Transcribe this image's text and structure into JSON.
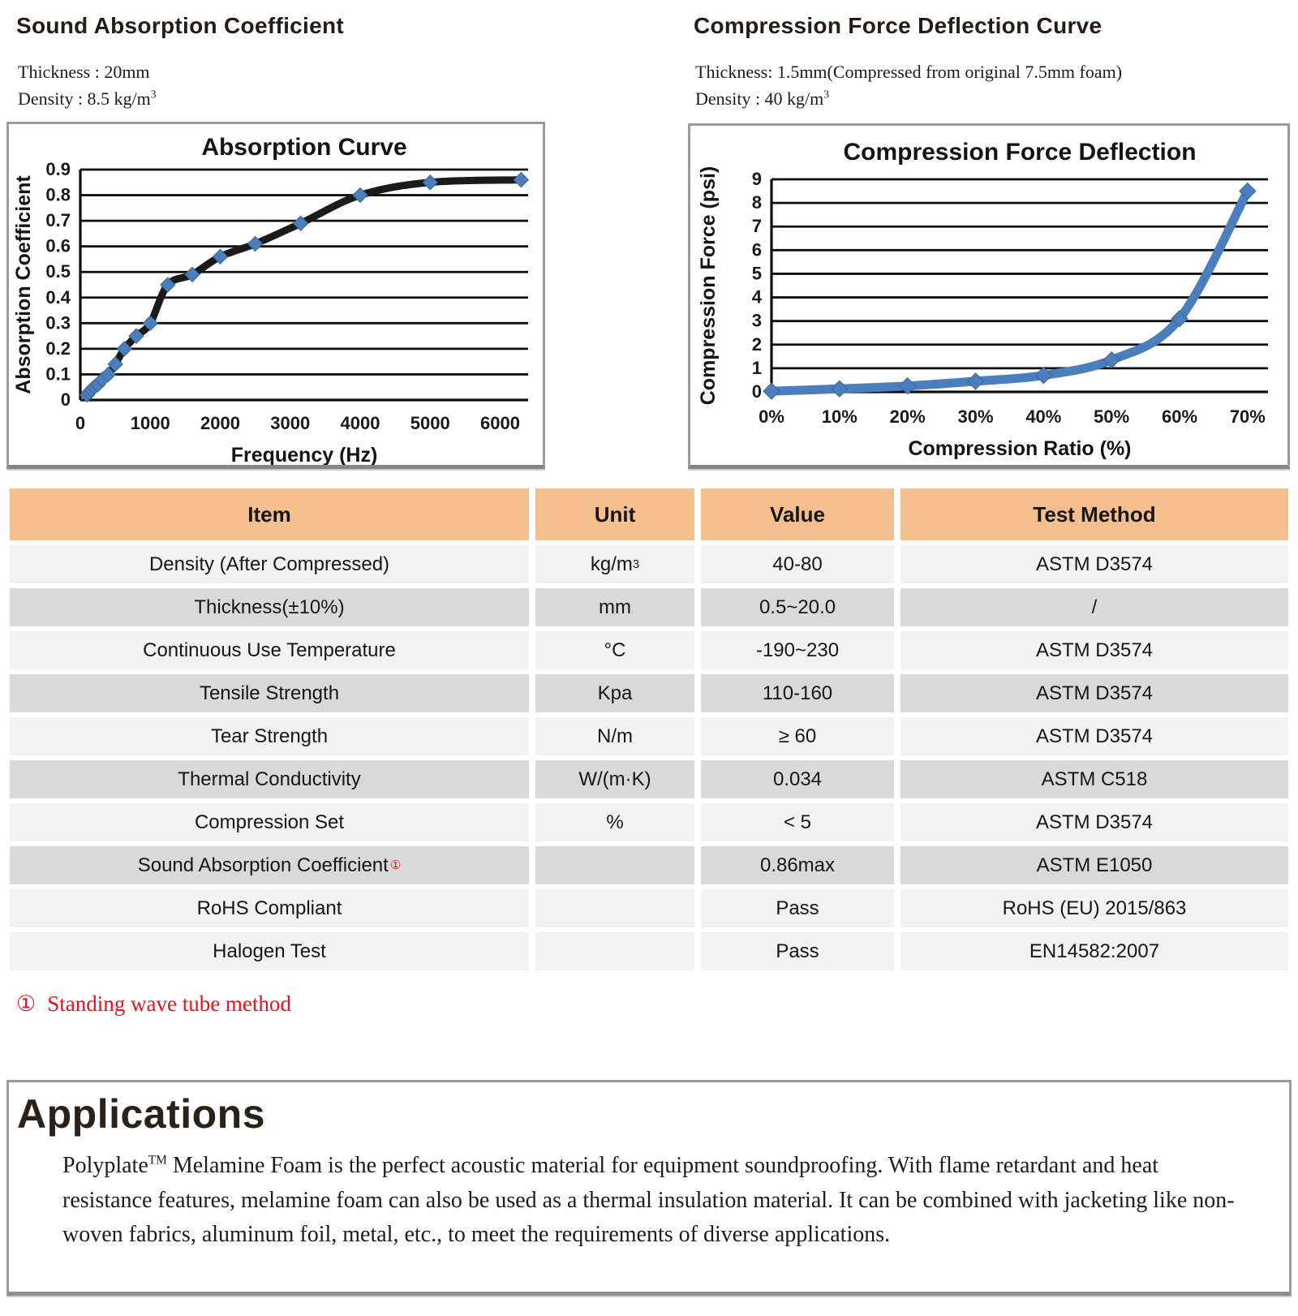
{
  "left_section": {
    "title": "Sound Absorption Coefficient",
    "sub1": "Thickness : 20mm",
    "sub2": "Density : 8.5 kg/m³"
  },
  "right_section": {
    "title": "Compression Force Deflection Curve",
    "sub1": "Thickness: 1.5mm(Compressed from original 7.5mm foam)",
    "sub2": "Density : 40 kg/m³"
  },
  "chart_data": [
    {
      "type": "line",
      "title": "Absorption Curve",
      "xlabel": "Frequency (Hz)",
      "ylabel": "Absorption Coefficient",
      "x": [
        100,
        125,
        160,
        200,
        250,
        315,
        400,
        500,
        630,
        800,
        1000,
        1250,
        1600,
        2000,
        2500,
        3150,
        4000,
        5000,
        6300
      ],
      "y": [
        0.02,
        0.03,
        0.04,
        0.05,
        0.06,
        0.08,
        0.1,
        0.14,
        0.2,
        0.25,
        0.3,
        0.45,
        0.49,
        0.56,
        0.61,
        0.69,
        0.8,
        0.85,
        0.86
      ],
      "xlim": [
        0,
        6400
      ],
      "ylim": [
        0,
        0.9
      ],
      "xticks": [
        0,
        1000,
        2000,
        3000,
        4000,
        5000,
        6000
      ],
      "ytick_step": 0.1,
      "grid": "horizontal",
      "legend": "none",
      "line_color": "#1b1b1b",
      "marker_color": "#4a7ebd"
    },
    {
      "type": "line",
      "title": "Compression Force Deflection",
      "xlabel": "Compression Ratio (%)",
      "ylabel": "Compression Force (psi)",
      "x": [
        0,
        10,
        20,
        30,
        40,
        50,
        60,
        70
      ],
      "y": [
        0.03,
        0.13,
        0.25,
        0.45,
        0.7,
        1.35,
        3.1,
        8.5
      ],
      "xlim": [
        0,
        73
      ],
      "ylim": [
        0,
        9
      ],
      "xticks": [
        0,
        10,
        20,
        30,
        40,
        50,
        60,
        70
      ],
      "xtick_suffix": "%",
      "ytick_step": 1,
      "grid": "horizontal",
      "legend": "none",
      "line_color": "#4a7ebd",
      "marker_color": "#4a7ebd"
    }
  ],
  "table": {
    "headers": [
      "Item",
      "Unit",
      "Value",
      "Test Method"
    ],
    "rows": [
      {
        "item": "Density (After Compressed)",
        "unit": "kg/m³",
        "value": "40-80",
        "method": "ASTM D3574"
      },
      {
        "item": "Thickness(±10%)",
        "unit": "mm",
        "value": "0.5~20.0",
        "method": "/"
      },
      {
        "item": "Continuous Use Temperature",
        "unit": "°C",
        "value": "-190~230",
        "method": "ASTM D3574"
      },
      {
        "item": "Tensile Strength",
        "unit": "Kpa",
        "value": "110-160",
        "method": "ASTM D3574"
      },
      {
        "item": "Tear Strength",
        "unit": "N/m",
        "value": "≥ 60",
        "method": "ASTM D3574"
      },
      {
        "item": "Thermal Conductivity",
        "unit": "W/(m·K)",
        "value": "0.034",
        "method": "ASTM C518"
      },
      {
        "item": "Compression Set",
        "unit": "%",
        "value": "< 5",
        "method": "ASTM D3574"
      },
      {
        "item": "Sound Absorption Coefficient",
        "note": "①",
        "unit": "",
        "value": "0.86max",
        "method": "ASTM E1050"
      },
      {
        "item": "RoHS Compliant",
        "unit": "",
        "value": "Pass",
        "method": "RoHS (EU) 2015/863"
      },
      {
        "item": "Halogen Test",
        "unit": "",
        "value": "Pass",
        "method": "EN14582:2007"
      }
    ]
  },
  "footnote": {
    "marker": "①",
    "text": "Standing wave tube method"
  },
  "applications": {
    "title": "Applications",
    "paragraph": "Polyplate™ Melamine Foam is the perfect acoustic material for equipment soundproofing. With flame retardant and heat resistance features, melamine foam can also be used as a thermal insulation material. It can be combined with jacketing like non-woven fabrics, aluminum foil, metal, etc., to meet the requirements of diverse applications."
  },
  "colors": {
    "table_header_bg": "#f4be8e",
    "row_light": "#f2f2f2",
    "row_dark": "#d9d9d9",
    "accent_red": "#e8121f",
    "curve_blue": "#4a7ebd",
    "curve_black": "#1b1b1b"
  }
}
